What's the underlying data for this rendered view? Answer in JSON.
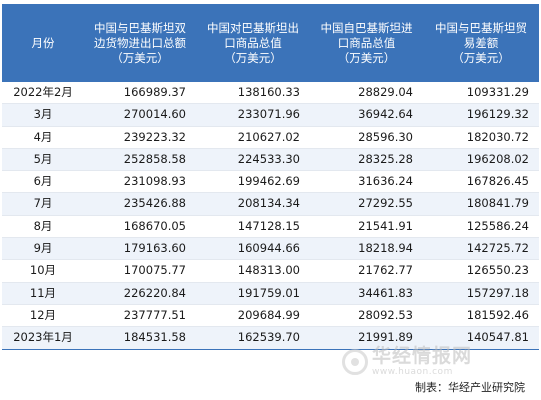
{
  "table": {
    "headers": [
      [
        "月份"
      ],
      [
        "中国与巴基斯坦双",
        "边货物进出口总额",
        "（万美元）"
      ],
      [
        "中国对巴基斯坦出",
        "口商品总值",
        "（万美元）"
      ],
      [
        "中国自巴基斯坦进",
        "口商品总值",
        "（万美元）"
      ],
      [
        "中国与巴基斯坦贸",
        "易差额",
        "（万美元）"
      ]
    ],
    "rows": [
      [
        "2022年2月",
        "166989.37",
        "138160.33",
        "28829.04",
        "109331.29"
      ],
      [
        "3月",
        "270014.60",
        "233071.96",
        "36942.64",
        "196129.32"
      ],
      [
        "4月",
        "239223.32",
        "210627.02",
        "28596.30",
        "182030.72"
      ],
      [
        "5月",
        "252858.58",
        "224533.30",
        "28325.28",
        "196208.02"
      ],
      [
        "6月",
        "231098.93",
        "199462.69",
        "31636.24",
        "167826.45"
      ],
      [
        "7月",
        "235426.88",
        "208134.34",
        "27292.55",
        "180841.79"
      ],
      [
        "8月",
        "168670.05",
        "147128.15",
        "21541.91",
        "125586.24"
      ],
      [
        "9月",
        "179163.60",
        "160944.66",
        "18218.94",
        "142725.72"
      ],
      [
        "10月",
        "170075.77",
        "148313.00",
        "21762.77",
        "126550.23"
      ],
      [
        "11月",
        "226220.84",
        "191759.01",
        "34461.83",
        "157297.18"
      ],
      [
        "12月",
        "237777.51",
        "209684.99",
        "28092.53",
        "181592.46"
      ],
      [
        "2023年1月",
        "184531.58",
        "162539.70",
        "21991.89",
        "140547.81"
      ]
    ]
  },
  "source": "制表：华经产业研究院",
  "watermark": {
    "title": "华经情报网",
    "url": "www.huaon.com"
  },
  "colors": {
    "header_bg": "#3b73b9",
    "header_text": "#ffffff",
    "stripe": "#eef3fa"
  }
}
